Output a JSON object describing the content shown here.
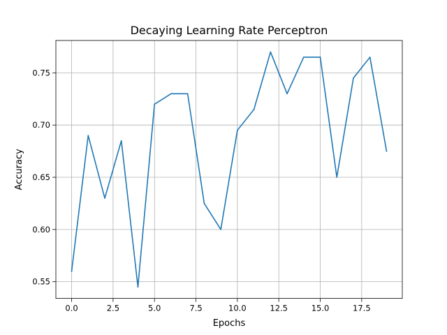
{
  "chart_data": {
    "type": "line",
    "title": "Decaying Learning Rate Perceptron",
    "xlabel": "Epochs",
    "ylabel": "Accuracy",
    "xlim": [
      -0.95,
      19.95
    ],
    "ylim": [
      0.534,
      0.781
    ],
    "grid": true,
    "x_ticks": [
      0.0,
      2.5,
      5.0,
      7.5,
      10.0,
      12.5,
      15.0,
      17.5
    ],
    "x_tick_labels": [
      "0.0",
      "2.5",
      "5.0",
      "7.5",
      "10.0",
      "12.5",
      "15.0",
      "17.5"
    ],
    "y_ticks": [
      0.55,
      0.6,
      0.65,
      0.7,
      0.75
    ],
    "y_tick_labels": [
      "0.55",
      "0.60",
      "0.65",
      "0.70",
      "0.75"
    ],
    "series": [
      {
        "color": "#1f77b4",
        "x": [
          0,
          1,
          2,
          3,
          4,
          5,
          6,
          7,
          8,
          9,
          10,
          11,
          12,
          13,
          14,
          15,
          16,
          17,
          18,
          19
        ],
        "values": [
          0.56,
          0.69,
          0.63,
          0.685,
          0.545,
          0.72,
          0.73,
          0.73,
          0.625,
          0.6,
          0.695,
          0.715,
          0.77,
          0.73,
          0.765,
          0.765,
          0.65,
          0.745,
          0.765,
          0.675
        ]
      }
    ]
  }
}
